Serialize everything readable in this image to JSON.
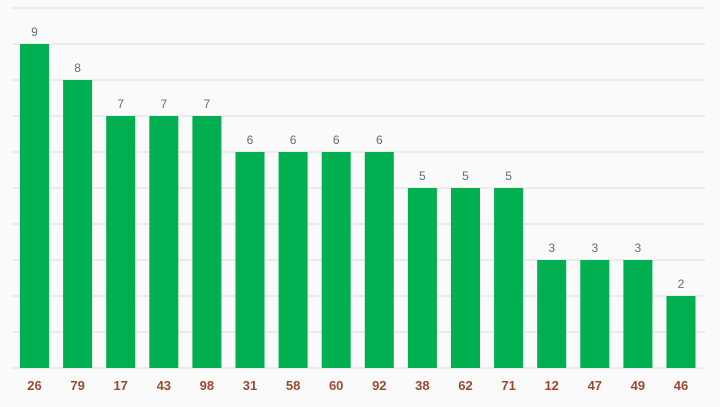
{
  "chart_data": {
    "type": "bar",
    "categories": [
      "26",
      "79",
      "17",
      "43",
      "98",
      "31",
      "58",
      "60",
      "92",
      "38",
      "62",
      "71",
      "12",
      "47",
      "49",
      "46"
    ],
    "values": [
      9,
      8,
      7,
      7,
      7,
      6,
      6,
      6,
      6,
      5,
      5,
      5,
      3,
      3,
      3,
      2
    ],
    "title": "",
    "xlabel": "",
    "ylabel": "",
    "ylim": [
      0,
      10
    ],
    "grid": true,
    "legend": "none",
    "colors": {
      "bar": "#00af50",
      "value_label": "#5f6f7f",
      "category_label": "#9c4a2f",
      "grid": "#dcdcdc",
      "background": "#fafafa"
    }
  }
}
